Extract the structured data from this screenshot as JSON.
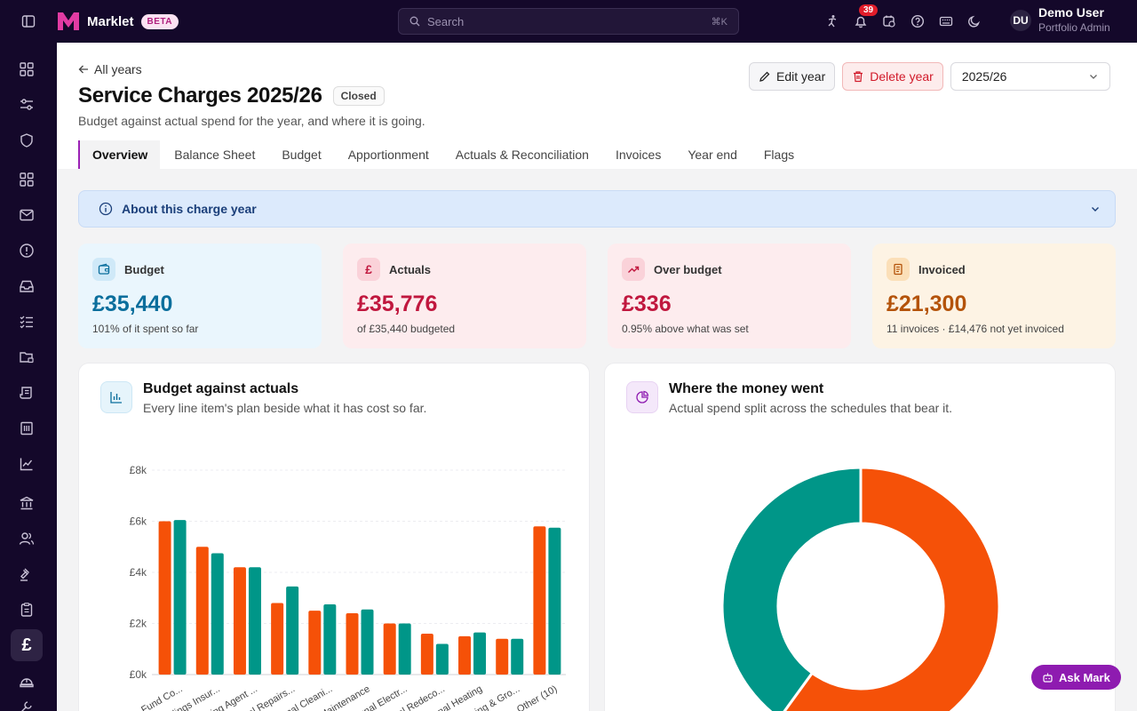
{
  "app": {
    "name": "Marklet",
    "badge": "BETA"
  },
  "search": {
    "placeholder": "Search",
    "shortcut": "⌘K"
  },
  "notifications": {
    "count": "39"
  },
  "user": {
    "initials": "DU",
    "name": "Demo User",
    "role": "Portfolio Admin"
  },
  "header": {
    "back_label": "All years",
    "title": "Service Charges 2025/26",
    "status": "Closed",
    "subtitle": "Budget against actual spend for the year, and where it is going.",
    "edit_label": "Edit year",
    "delete_label": "Delete year",
    "year_selected": "2025/26"
  },
  "tabs": [
    "Overview",
    "Balance Sheet",
    "Budget",
    "Apportionment",
    "Actuals & Reconciliation",
    "Invoices",
    "Year end",
    "Flags"
  ],
  "about": {
    "label": "About this charge year"
  },
  "kpis": [
    {
      "label": "Budget",
      "value": "£35,440",
      "note": "101% of it spent so far",
      "color": "#0a6e9c",
      "bg": "#eaf6fd",
      "icon": "wallet-icon"
    },
    {
      "label": "Actuals",
      "value": "£35,776",
      "note": "of £35,440 budgeted",
      "color": "#c0173e",
      "bg": "#fdecee",
      "icon": "pound-icon"
    },
    {
      "label": "Over budget",
      "value": "£336",
      "note": "0.95% above what was set",
      "color": "#c0173e",
      "bg": "#fdecee",
      "icon": "trend-up-icon"
    },
    {
      "label": "Invoiced",
      "value": "£21,300",
      "note": "11 invoices · £14,476 not yet invoiced",
      "color": "#b4530a",
      "bg": "#fdf3e4",
      "icon": "receipt-icon"
    }
  ],
  "bar_card": {
    "title": "Budget against actuals",
    "subtitle": "Every line item's plan beside what it has cost so far."
  },
  "pie_card": {
    "title": "Where the money went",
    "subtitle": "Actual spend split across the schedules that bear it."
  },
  "ask": {
    "label": "Ask Mark"
  },
  "chart_data": [
    {
      "type": "bar",
      "categories": [
        "...ve Fund Co...",
        "...ldings Insur...",
        "...ing Agent ...",
        "...ral Repairs...",
        "...rnal Cleani...",
        "Maintenance",
        "...unal Electr...",
        "...nal Redeco...",
        "...unal Heating",
        "...ning & Gro...",
        "Other (10)"
      ],
      "series": [
        {
          "name": "",
          "values": [
            6000,
            5000,
            4200,
            2800,
            2500,
            2400,
            2000,
            1600,
            1500,
            1400,
            5800
          ],
          "color": "#f55108"
        },
        {
          "name": "",
          "values": [
            6050,
            4750,
            4200,
            3450,
            2750,
            2550,
            2000,
            1200,
            1650,
            1400,
            5750
          ],
          "color": "#009688"
        }
      ],
      "yticks": [
        "£0k",
        "£2k",
        "£4k",
        "£6k",
        "£8k"
      ],
      "ylim": [
        0,
        8000
      ],
      "grid": true
    },
    {
      "type": "pie",
      "donut": true,
      "slices": [
        {
          "value": 60,
          "color": "#f55108"
        },
        {
          "value": 40,
          "color": "#009688"
        }
      ]
    }
  ]
}
